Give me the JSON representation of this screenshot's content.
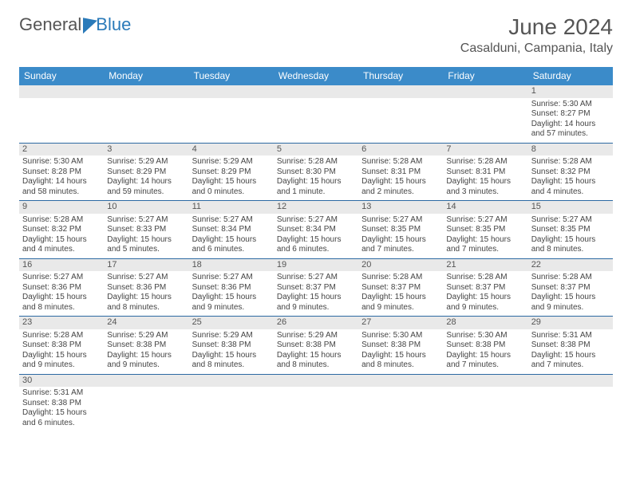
{
  "logo": {
    "text1": "General",
    "text2": "Blue"
  },
  "title": "June 2024",
  "location": "Casalduni, Campania, Italy",
  "colors": {
    "header_bg": "#3b8bc9",
    "header_text": "#ffffff",
    "daynum_bg": "#e9e9e9",
    "row_border": "#2d6aa3",
    "text": "#444444",
    "title_color": "#555555"
  },
  "fonts": {
    "title_pt": 28,
    "location_pt": 16,
    "dayhead_pt": 12,
    "cell_pt": 10
  },
  "dayHeaders": [
    "Sunday",
    "Monday",
    "Tuesday",
    "Wednesday",
    "Thursday",
    "Friday",
    "Saturday"
  ],
  "weeks": [
    {
      "nums": [
        "",
        "",
        "",
        "",
        "",
        "",
        "1"
      ],
      "cells": [
        null,
        null,
        null,
        null,
        null,
        null,
        {
          "sunrise": "Sunrise: 5:30 AM",
          "sunset": "Sunset: 8:27 PM",
          "daylight": "Daylight: 14 hours and 57 minutes."
        }
      ]
    },
    {
      "nums": [
        "2",
        "3",
        "4",
        "5",
        "6",
        "7",
        "8"
      ],
      "cells": [
        {
          "sunrise": "Sunrise: 5:30 AM",
          "sunset": "Sunset: 8:28 PM",
          "daylight": "Daylight: 14 hours and 58 minutes."
        },
        {
          "sunrise": "Sunrise: 5:29 AM",
          "sunset": "Sunset: 8:29 PM",
          "daylight": "Daylight: 14 hours and 59 minutes."
        },
        {
          "sunrise": "Sunrise: 5:29 AM",
          "sunset": "Sunset: 8:29 PM",
          "daylight": "Daylight: 15 hours and 0 minutes."
        },
        {
          "sunrise": "Sunrise: 5:28 AM",
          "sunset": "Sunset: 8:30 PM",
          "daylight": "Daylight: 15 hours and 1 minute."
        },
        {
          "sunrise": "Sunrise: 5:28 AM",
          "sunset": "Sunset: 8:31 PM",
          "daylight": "Daylight: 15 hours and 2 minutes."
        },
        {
          "sunrise": "Sunrise: 5:28 AM",
          "sunset": "Sunset: 8:31 PM",
          "daylight": "Daylight: 15 hours and 3 minutes."
        },
        {
          "sunrise": "Sunrise: 5:28 AM",
          "sunset": "Sunset: 8:32 PM",
          "daylight": "Daylight: 15 hours and 4 minutes."
        }
      ]
    },
    {
      "nums": [
        "9",
        "10",
        "11",
        "12",
        "13",
        "14",
        "15"
      ],
      "cells": [
        {
          "sunrise": "Sunrise: 5:28 AM",
          "sunset": "Sunset: 8:32 PM",
          "daylight": "Daylight: 15 hours and 4 minutes."
        },
        {
          "sunrise": "Sunrise: 5:27 AM",
          "sunset": "Sunset: 8:33 PM",
          "daylight": "Daylight: 15 hours and 5 minutes."
        },
        {
          "sunrise": "Sunrise: 5:27 AM",
          "sunset": "Sunset: 8:34 PM",
          "daylight": "Daylight: 15 hours and 6 minutes."
        },
        {
          "sunrise": "Sunrise: 5:27 AM",
          "sunset": "Sunset: 8:34 PM",
          "daylight": "Daylight: 15 hours and 6 minutes."
        },
        {
          "sunrise": "Sunrise: 5:27 AM",
          "sunset": "Sunset: 8:35 PM",
          "daylight": "Daylight: 15 hours and 7 minutes."
        },
        {
          "sunrise": "Sunrise: 5:27 AM",
          "sunset": "Sunset: 8:35 PM",
          "daylight": "Daylight: 15 hours and 7 minutes."
        },
        {
          "sunrise": "Sunrise: 5:27 AM",
          "sunset": "Sunset: 8:35 PM",
          "daylight": "Daylight: 15 hours and 8 minutes."
        }
      ]
    },
    {
      "nums": [
        "16",
        "17",
        "18",
        "19",
        "20",
        "21",
        "22"
      ],
      "cells": [
        {
          "sunrise": "Sunrise: 5:27 AM",
          "sunset": "Sunset: 8:36 PM",
          "daylight": "Daylight: 15 hours and 8 minutes."
        },
        {
          "sunrise": "Sunrise: 5:27 AM",
          "sunset": "Sunset: 8:36 PM",
          "daylight": "Daylight: 15 hours and 8 minutes."
        },
        {
          "sunrise": "Sunrise: 5:27 AM",
          "sunset": "Sunset: 8:36 PM",
          "daylight": "Daylight: 15 hours and 9 minutes."
        },
        {
          "sunrise": "Sunrise: 5:27 AM",
          "sunset": "Sunset: 8:37 PM",
          "daylight": "Daylight: 15 hours and 9 minutes."
        },
        {
          "sunrise": "Sunrise: 5:28 AM",
          "sunset": "Sunset: 8:37 PM",
          "daylight": "Daylight: 15 hours and 9 minutes."
        },
        {
          "sunrise": "Sunrise: 5:28 AM",
          "sunset": "Sunset: 8:37 PM",
          "daylight": "Daylight: 15 hours and 9 minutes."
        },
        {
          "sunrise": "Sunrise: 5:28 AM",
          "sunset": "Sunset: 8:37 PM",
          "daylight": "Daylight: 15 hours and 9 minutes."
        }
      ]
    },
    {
      "nums": [
        "23",
        "24",
        "25",
        "26",
        "27",
        "28",
        "29"
      ],
      "cells": [
        {
          "sunrise": "Sunrise: 5:28 AM",
          "sunset": "Sunset: 8:38 PM",
          "daylight": "Daylight: 15 hours and 9 minutes."
        },
        {
          "sunrise": "Sunrise: 5:29 AM",
          "sunset": "Sunset: 8:38 PM",
          "daylight": "Daylight: 15 hours and 9 minutes."
        },
        {
          "sunrise": "Sunrise: 5:29 AM",
          "sunset": "Sunset: 8:38 PM",
          "daylight": "Daylight: 15 hours and 8 minutes."
        },
        {
          "sunrise": "Sunrise: 5:29 AM",
          "sunset": "Sunset: 8:38 PM",
          "daylight": "Daylight: 15 hours and 8 minutes."
        },
        {
          "sunrise": "Sunrise: 5:30 AM",
          "sunset": "Sunset: 8:38 PM",
          "daylight": "Daylight: 15 hours and 8 minutes."
        },
        {
          "sunrise": "Sunrise: 5:30 AM",
          "sunset": "Sunset: 8:38 PM",
          "daylight": "Daylight: 15 hours and 7 minutes."
        },
        {
          "sunrise": "Sunrise: 5:31 AM",
          "sunset": "Sunset: 8:38 PM",
          "daylight": "Daylight: 15 hours and 7 minutes."
        }
      ]
    },
    {
      "nums": [
        "30",
        "",
        "",
        "",
        "",
        "",
        ""
      ],
      "cells": [
        {
          "sunrise": "Sunrise: 5:31 AM",
          "sunset": "Sunset: 8:38 PM",
          "daylight": "Daylight: 15 hours and 6 minutes."
        },
        null,
        null,
        null,
        null,
        null,
        null
      ]
    }
  ]
}
